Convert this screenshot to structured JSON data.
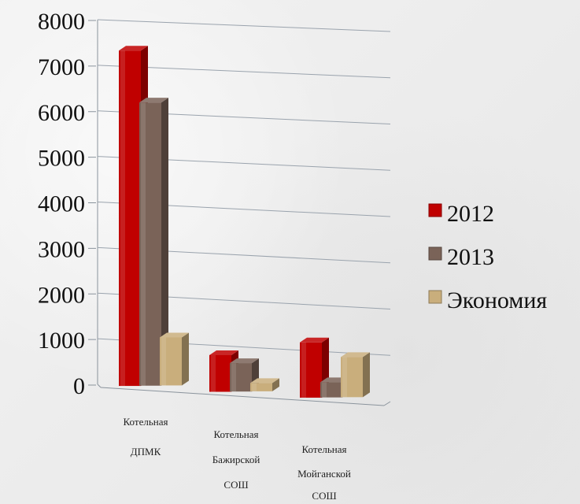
{
  "chart_data": {
    "type": "bar",
    "subtype": "3d-clustered-column",
    "categories": [
      [
        "Котельная",
        "ДПМК"
      ],
      [
        "Котельная",
        "Бажирской",
        "СОШ"
      ],
      [
        "Котельная",
        "Мойганской",
        "СОШ"
      ]
    ],
    "series": [
      {
        "name": "2012",
        "color": "#c00000",
        "values": [
          7350,
          800,
          1200
        ]
      },
      {
        "name": "2013",
        "color": "#7a6358",
        "values": [
          6200,
          620,
          330
        ]
      },
      {
        "name": "Экономия",
        "color": "#c9ae7c",
        "values": [
          1050,
          180,
          870
        ]
      }
    ],
    "yticks": [
      "0",
      "1000",
      "2000",
      "3000",
      "4000",
      "5000",
      "6000",
      "7000",
      "8000"
    ],
    "ylim": [
      0,
      8000
    ],
    "grid": true,
    "legend": "right",
    "title": "",
    "xlabel": "",
    "ylabel": ""
  }
}
